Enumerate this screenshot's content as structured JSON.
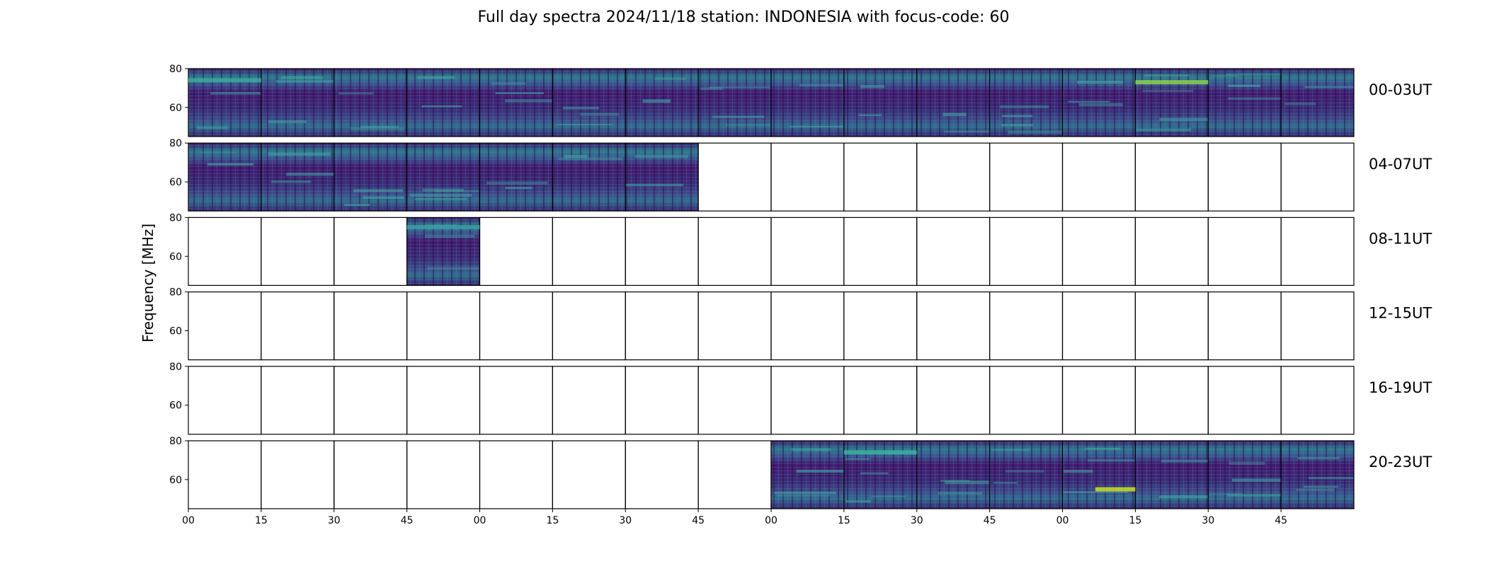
{
  "chart_data": {
    "type": "heatmap",
    "title": "Full day spectra 2024/11/18 station: INDONESIA with focus-code: 60",
    "ylabel": "Frequency [MHz]",
    "ylim": [
      45,
      80
    ],
    "y_ticks": [
      60,
      80
    ],
    "x_ticks": [
      "00",
      "15",
      "30",
      "45",
      "00",
      "15",
      "30",
      "45",
      "00",
      "15",
      "30",
      "45",
      "00",
      "15",
      "30",
      "45"
    ],
    "rows": [
      {
        "label": "00-03UT",
        "panels": [
          1,
          1,
          1,
          1,
          1,
          1,
          1,
          1,
          1,
          1,
          1,
          1,
          1,
          1,
          1,
          1
        ]
      },
      {
        "label": "04-07UT",
        "panels": [
          1,
          1,
          1,
          1,
          1,
          1,
          1,
          0,
          0,
          0,
          0,
          0,
          0,
          0,
          0,
          0
        ]
      },
      {
        "label": "08-11UT",
        "panels": [
          0,
          0,
          0,
          1,
          0,
          0,
          0,
          0,
          0,
          0,
          0,
          0,
          0,
          0,
          0,
          0
        ]
      },
      {
        "label": "12-15UT",
        "panels": [
          0,
          0,
          0,
          0,
          0,
          0,
          0,
          0,
          0,
          0,
          0,
          0,
          0,
          0,
          0,
          0
        ]
      },
      {
        "label": "16-19UT",
        "panels": [
          0,
          0,
          0,
          0,
          0,
          0,
          0,
          0,
          0,
          0,
          0,
          0,
          0,
          0,
          0,
          0
        ]
      },
      {
        "label": "20-23UT",
        "panels": [
          0,
          0,
          0,
          0,
          0,
          0,
          0,
          0,
          1,
          1,
          1,
          1,
          1,
          1,
          1,
          1
        ]
      }
    ],
    "colormap": {
      "low": "#3b0f6f",
      "mid": "#2f8b8e",
      "high": "#b5de2b"
    }
  }
}
